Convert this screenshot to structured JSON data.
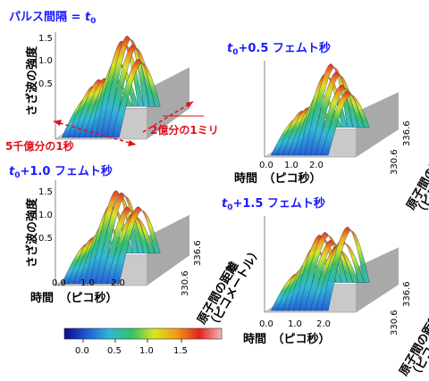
{
  "panels": [
    {
      "title_base": "パルス間隔 = ",
      "title_sym": "t",
      "title_sub": "0",
      "title_rest": ""
    },
    {
      "title_base": "",
      "title_sym": "t",
      "title_sub": "0",
      "title_rest": "+0.5 フェムト秒"
    },
    {
      "title_base": "",
      "title_sym": "t",
      "title_sub": "0",
      "title_rest": "+1.0 フェムト秒"
    },
    {
      "title_base": "",
      "title_sym": "t",
      "title_sub": "0",
      "title_rest": "+1.5 フェムト秒"
    }
  ],
  "axis": {
    "z_label": "さざ波の強度",
    "x_label": "時間　（ピコ秒）",
    "y_label_1": "原子間の距離",
    "y_label_2": "（ピコメートル）",
    "z_ticks": [
      "0.5",
      "1.0",
      "1.5"
    ],
    "x_ticks": [
      "0.0",
      "1.0",
      "2.0"
    ],
    "y_ticks": [
      "330.6",
      "336.6"
    ]
  },
  "annotations": {
    "time_scale": "5千億分の1秒",
    "length_scale": "2億分の1ミリ"
  },
  "colorbar": {
    "ticks": [
      "0.0",
      "0.5",
      "1.0",
      "1.5"
    ],
    "stops": [
      "#0b0b8a",
      "#1f5bd6",
      "#2fb7d8",
      "#35c06a",
      "#d9e61e",
      "#f29a16",
      "#e2231c",
      "#f4b6b6"
    ]
  }
}
